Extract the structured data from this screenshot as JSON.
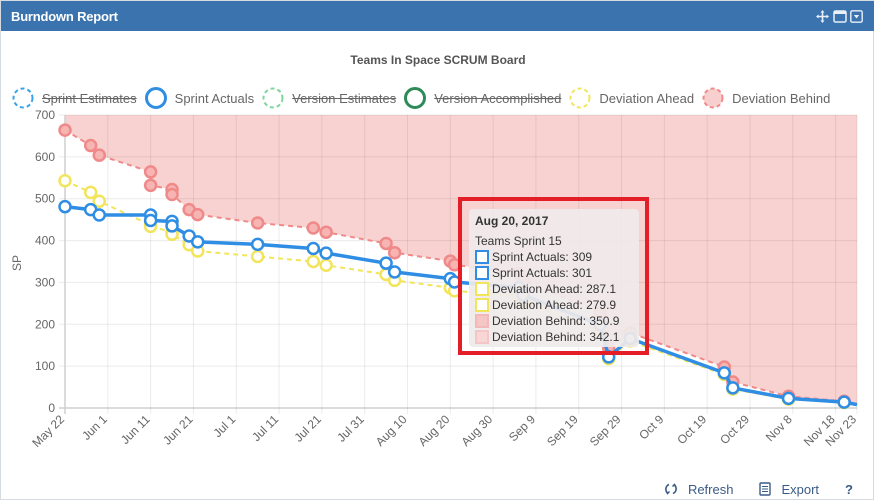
{
  "header": {
    "title": "Burndown Report",
    "icons": [
      "move-icon",
      "maximize-icon",
      "dropdown-icon"
    ]
  },
  "chart_data": {
    "type": "line",
    "title": "Teams In Space SCRUM Board",
    "xlabel": "",
    "ylabel": "SP",
    "ylim": [
      0,
      700
    ],
    "yticks": [
      0,
      100,
      200,
      300,
      400,
      500,
      600,
      700
    ],
    "xticks": [
      "May 22",
      "Jun 1",
      "Jun 11",
      "Jun 21",
      "Jul 1",
      "Jul 11",
      "Jul 21",
      "Jul 31",
      "Aug 10",
      "Aug 20",
      "Aug 30",
      "Sep 9",
      "Sep 19",
      "Sep 29",
      "Oct 9",
      "Oct 19",
      "Oct 29",
      "Nov 8",
      "Nov 18",
      "Nov 23"
    ],
    "grid": true,
    "legend_position": "top",
    "legend": [
      {
        "name": "Sprint Estimates",
        "hidden": true,
        "color": "#36a2eb",
        "style": "dashed"
      },
      {
        "name": "Sprint Actuals",
        "hidden": false,
        "color": "#2f8de4",
        "style": "solid"
      },
      {
        "name": "Version Estimates",
        "hidden": true,
        "color": "#7ed69a",
        "style": "dashed"
      },
      {
        "name": "Version Accomplished",
        "hidden": true,
        "color": "#2e8b57",
        "style": "solid"
      },
      {
        "name": "Deviation Ahead",
        "hidden": false,
        "color": "#f2e55c",
        "style": "dashed"
      },
      {
        "name": "Deviation Behind",
        "hidden": false,
        "color": "#f08a8a",
        "style": "dashed-fill"
      }
    ],
    "series": [
      {
        "name": "Sprint Actuals",
        "x_days": [
          0,
          6,
          8,
          20,
          20,
          25,
          25,
          29,
          31,
          45,
          58,
          61,
          75,
          77,
          90,
          91,
          106,
          107,
          125,
          127,
          132,
          154,
          156,
          169,
          182,
          185
        ],
        "values": [
          481,
          474,
          461,
          461,
          448,
          446,
          435,
          411,
          397,
          391,
          381,
          370,
          346,
          325,
          309,
          301,
          288,
          270,
          199,
          122,
          166,
          84,
          48,
          23,
          14,
          8
        ]
      },
      {
        "name": "Deviation Ahead",
        "x_days": [
          0,
          6,
          8,
          20,
          20,
          25,
          25,
          29,
          31,
          45,
          58,
          61,
          75,
          77,
          90,
          91,
          106,
          107,
          125,
          127,
          132,
          154,
          156,
          169,
          182,
          185
        ],
        "values": [
          543,
          515,
          494,
          437,
          434,
          420,
          415,
          390,
          375,
          362,
          350,
          341,
          319,
          305,
          287.1,
          279.9,
          268,
          252,
          186,
          118,
          160,
          80,
          45,
          21,
          13,
          7
        ]
      },
      {
        "name": "Deviation Behind",
        "x_days": [
          0,
          6,
          8,
          20,
          20,
          25,
          25,
          29,
          31,
          45,
          58,
          61,
          75,
          77,
          90,
          91,
          106,
          107,
          125,
          127,
          132,
          154,
          156,
          169,
          182,
          185
        ],
        "values": [
          664,
          627,
          604,
          564,
          532,
          522,
          510,
          474,
          462,
          442,
          430,
          420,
          393,
          371,
          350.9,
          342.1,
          322,
          305,
          228,
          143,
          180,
          98,
          62,
          28,
          16,
          9
        ]
      }
    ]
  },
  "tooltip": {
    "date": "Aug 20, 2017",
    "subtitle": "Teams Sprint 15",
    "rows": [
      {
        "label": "Sprint Actuals: 309",
        "color": "#2f8de4",
        "fill": "#ffffff"
      },
      {
        "label": "Sprint Actuals: 301",
        "color": "#2f8de4",
        "fill": "#ffffff"
      },
      {
        "label": "Deviation Ahead: 287.1",
        "color": "#f2e55c",
        "fill": "#ffffff"
      },
      {
        "label": "Deviation Ahead: 279.9",
        "color": "#f2e55c",
        "fill": "#ffffff"
      },
      {
        "label": "Deviation Behind: 350.9",
        "color": "#f5b8b8",
        "fill": "#f5c6c6"
      },
      {
        "label": "Deviation Behind: 342.1",
        "color": "#f5c6c6",
        "fill": "#f8d6d6"
      }
    ]
  },
  "footer": {
    "refresh_label": "Refresh",
    "export_label": "Export",
    "help_label": "?"
  },
  "colors": {
    "header_bg": "#3b73af",
    "highlight_border": "#e41e26",
    "behind_fill": "#f8d2d0"
  }
}
